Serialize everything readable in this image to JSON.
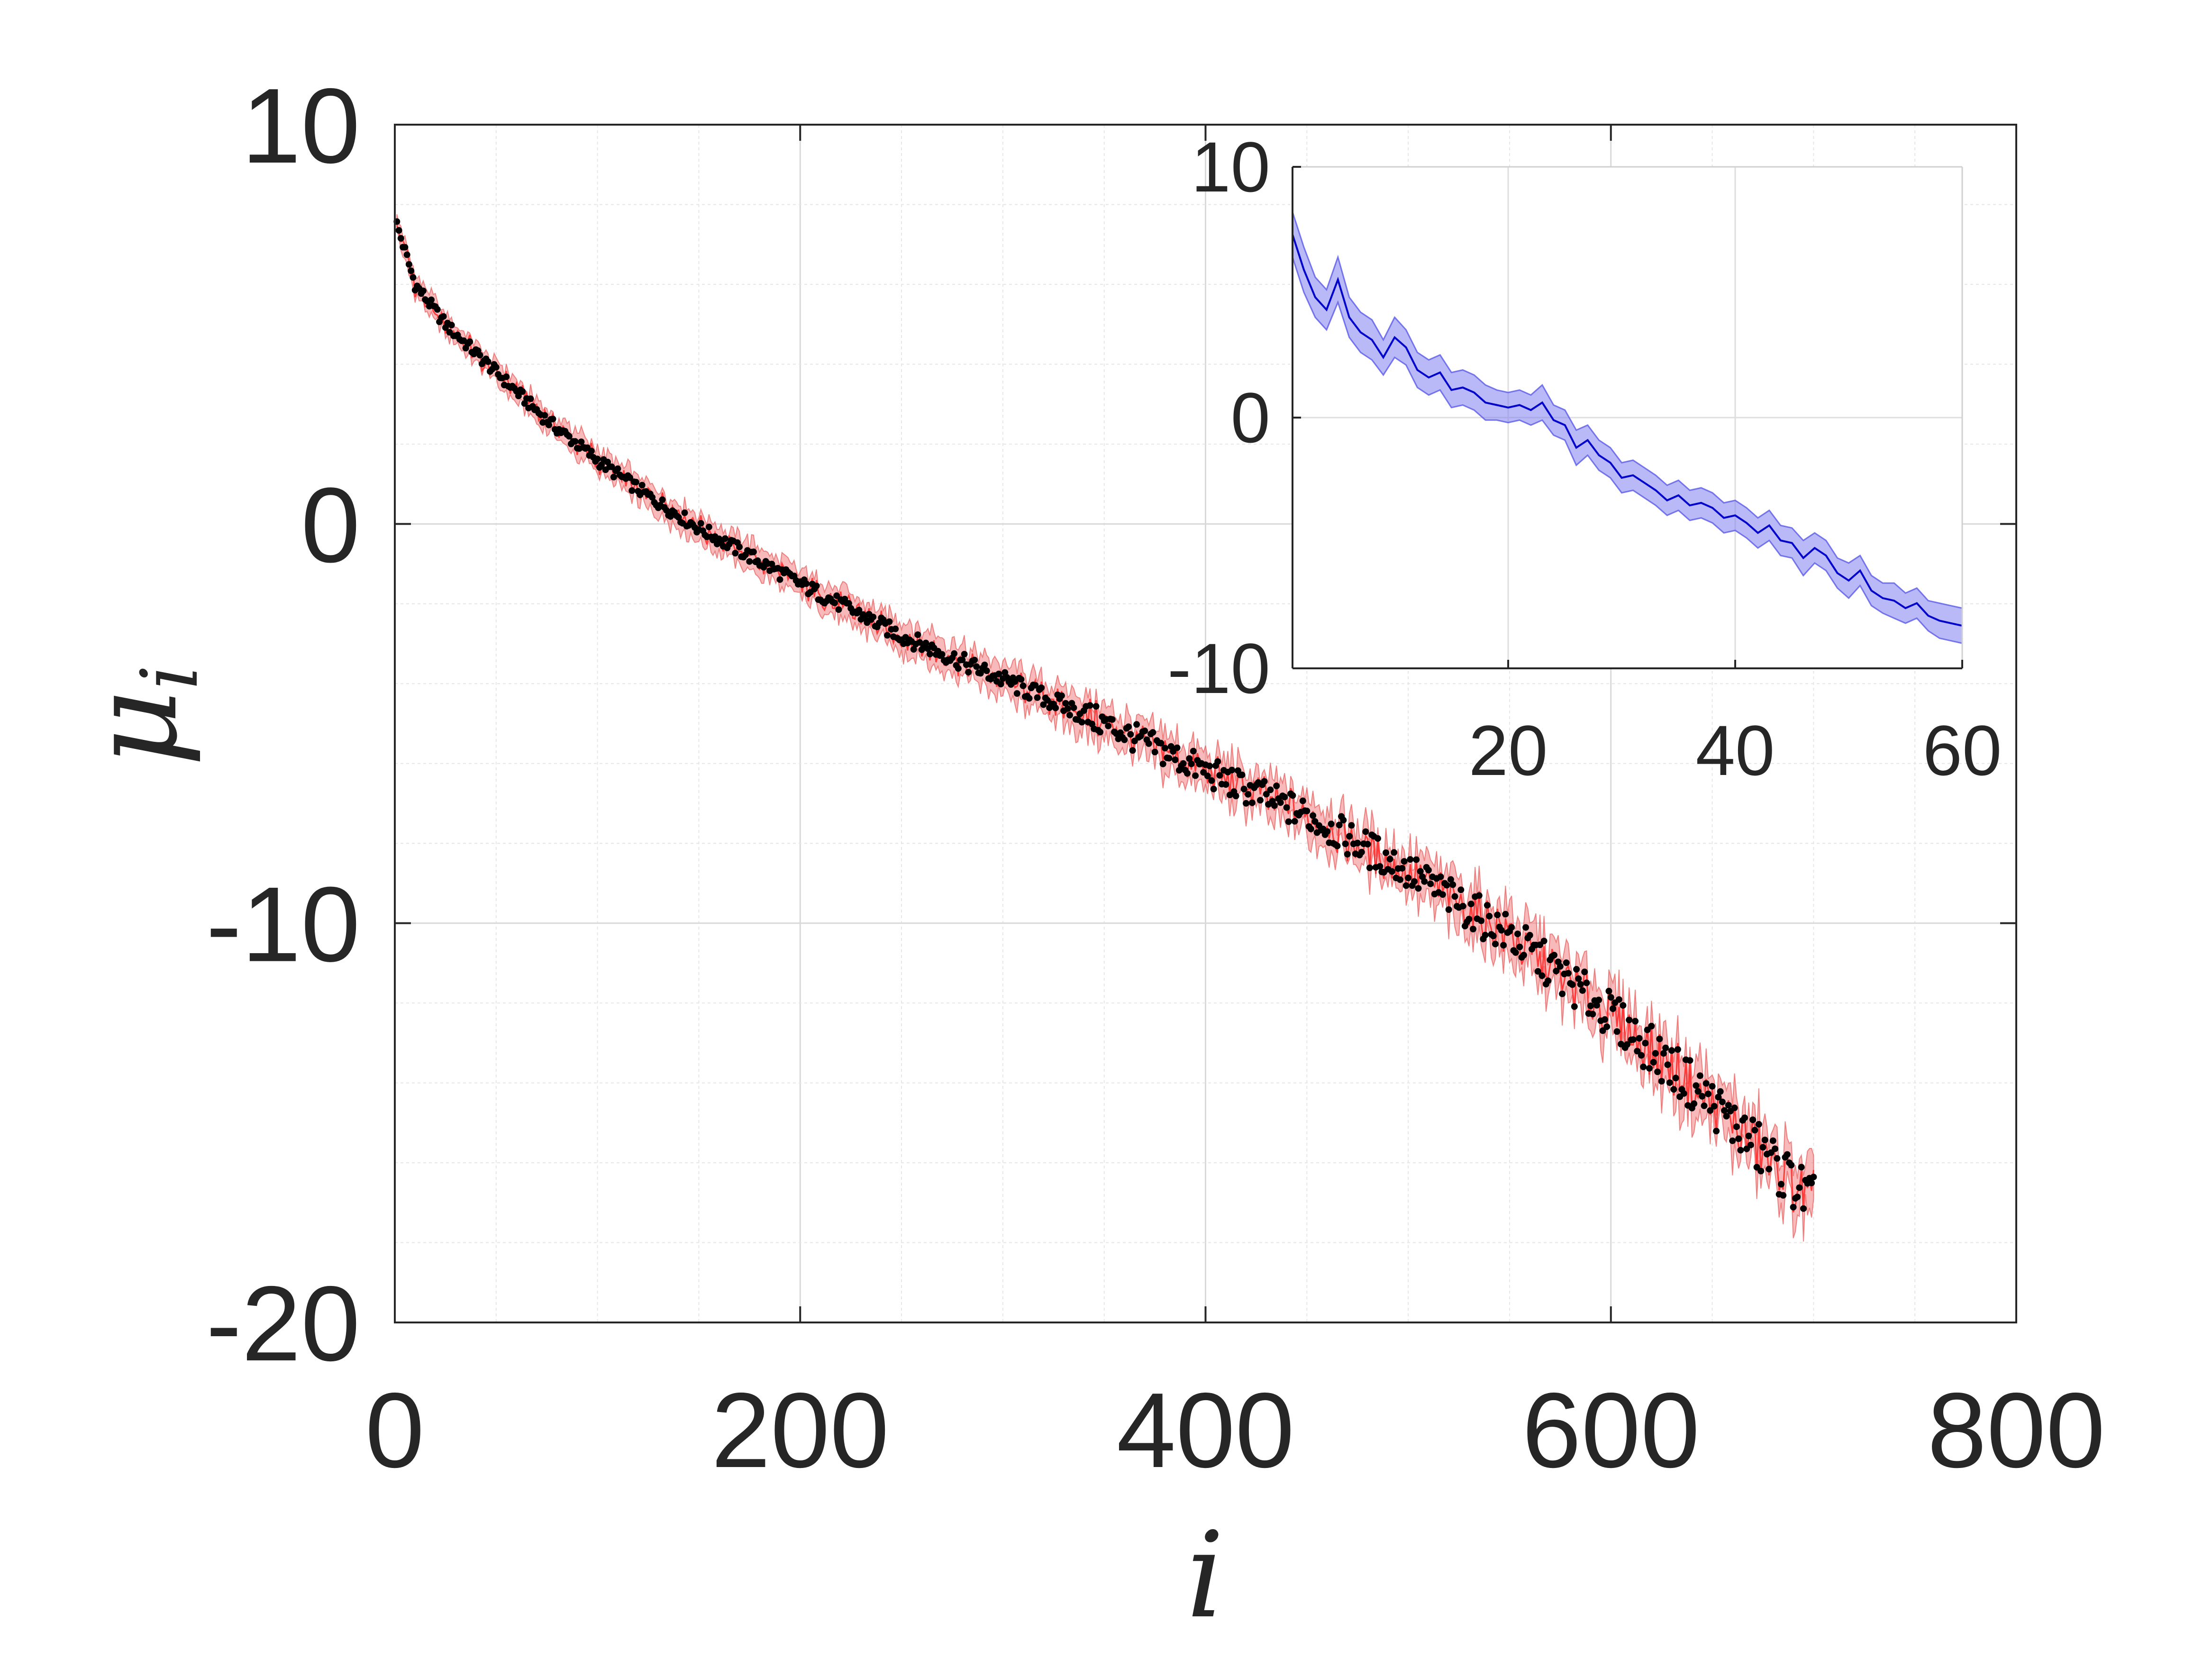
{
  "chart_data": [
    {
      "type": "scatter",
      "role": "main",
      "xlabel": "i",
      "ylabel": "μ",
      "ylabel_sub": "i",
      "xlim": [
        0,
        800
      ],
      "ylim": [
        -20,
        10
      ],
      "xticks": [
        0,
        200,
        400,
        600,
        800
      ],
      "yticks": [
        -20,
        -10,
        0,
        10
      ],
      "x_tick_labels": [
        "0",
        "200",
        "400",
        "600",
        "800"
      ],
      "y_tick_labels": [
        "-20",
        "-10",
        "0",
        "10"
      ],
      "grid": true,
      "minor_grid": true,
      "n_points": 700,
      "series": [
        {
          "kind": "band",
          "color": "#f08080",
          "curve_x": [
            1,
            10,
            25,
            50,
            75,
            100,
            125,
            150,
            200,
            250,
            300,
            350,
            400,
            450,
            500,
            550,
            600,
            650,
            700
          ],
          "curve_y": [
            7.5,
            6.0,
            5.0,
            3.8,
            2.6,
            1.6,
            0.7,
            -0.1,
            -1.5,
            -2.8,
            -3.9,
            -5.0,
            -6.2,
            -7.3,
            -8.7,
            -10.3,
            -12.3,
            -14.5,
            -17.0
          ],
          "half_width_start": 0.4,
          "half_width_end": 1.0
        },
        {
          "kind": "points",
          "color": "#000000",
          "curve_x": [
            1,
            10,
            25,
            50,
            75,
            100,
            125,
            150,
            200,
            250,
            300,
            350,
            400,
            450,
            500,
            550,
            600,
            650,
            700
          ],
          "curve_y": [
            7.5,
            6.0,
            5.0,
            3.8,
            2.6,
            1.6,
            0.7,
            -0.1,
            -1.5,
            -2.8,
            -3.9,
            -5.0,
            -6.2,
            -7.3,
            -8.7,
            -10.3,
            -12.3,
            -14.5,
            -17.0
          ]
        }
      ]
    },
    {
      "type": "line",
      "role": "inset",
      "xlim": [
        1,
        60
      ],
      "ylim": [
        -10,
        10
      ],
      "xticks": [
        20,
        40,
        60
      ],
      "yticks": [
        -10,
        0,
        10
      ],
      "x_tick_labels": [
        "20",
        "40",
        "60"
      ],
      "y_tick_labels": [
        "-10",
        "0",
        "10"
      ],
      "grid": true,
      "series": [
        {
          "kind": "line_with_band",
          "line_color": "#0000cd",
          "band_color": "#8080f0",
          "x": [
            1,
            2,
            3,
            4,
            5,
            6,
            7,
            8,
            9,
            10,
            11,
            12,
            13,
            14,
            15,
            16,
            17,
            18,
            19,
            20,
            21,
            22,
            23,
            24,
            25,
            26,
            27,
            28,
            29,
            30,
            31,
            32,
            33,
            34,
            35,
            36,
            37,
            38,
            39,
            40,
            41,
            42,
            43,
            44,
            45,
            46,
            47,
            48,
            49,
            50,
            51,
            52,
            53,
            54,
            55,
            56,
            57,
            58,
            59,
            60
          ],
          "y": [
            7.3,
            5.9,
            4.8,
            4.3,
            5.5,
            4.0,
            3.4,
            3.1,
            2.4,
            3.2,
            2.8,
            1.9,
            1.6,
            1.8,
            1.1,
            1.2,
            1.0,
            0.6,
            0.5,
            0.4,
            0.5,
            0.3,
            0.6,
            -0.1,
            -0.3,
            -1.2,
            -0.9,
            -1.5,
            -1.8,
            -2.4,
            -2.3,
            -2.6,
            -2.9,
            -3.3,
            -3.1,
            -3.5,
            -3.4,
            -3.6,
            -4.0,
            -3.9,
            -4.2,
            -4.6,
            -4.3,
            -4.9,
            -5.0,
            -5.6,
            -5.2,
            -5.5,
            -6.2,
            -6.5,
            -6.1,
            -6.9,
            -7.2,
            -7.3,
            -7.6,
            -7.4,
            -7.9,
            -8.1,
            -8.2,
            -8.3
          ],
          "band_half_width": [
            0.9,
            0.9,
            0.8,
            0.8,
            0.9,
            0.8,
            0.8,
            0.8,
            0.7,
            0.8,
            0.7,
            0.7,
            0.7,
            0.7,
            0.7,
            0.7,
            0.7,
            0.7,
            0.6,
            0.6,
            0.6,
            0.6,
            0.7,
            0.6,
            0.6,
            0.7,
            0.6,
            0.6,
            0.6,
            0.6,
            0.6,
            0.6,
            0.6,
            0.6,
            0.6,
            0.6,
            0.6,
            0.6,
            0.6,
            0.6,
            0.6,
            0.6,
            0.6,
            0.6,
            0.6,
            0.7,
            0.6,
            0.6,
            0.6,
            0.7,
            0.6,
            0.6,
            0.6,
            0.7,
            0.6,
            0.6,
            0.6,
            0.7,
            0.7,
            0.7
          ]
        }
      ]
    }
  ]
}
